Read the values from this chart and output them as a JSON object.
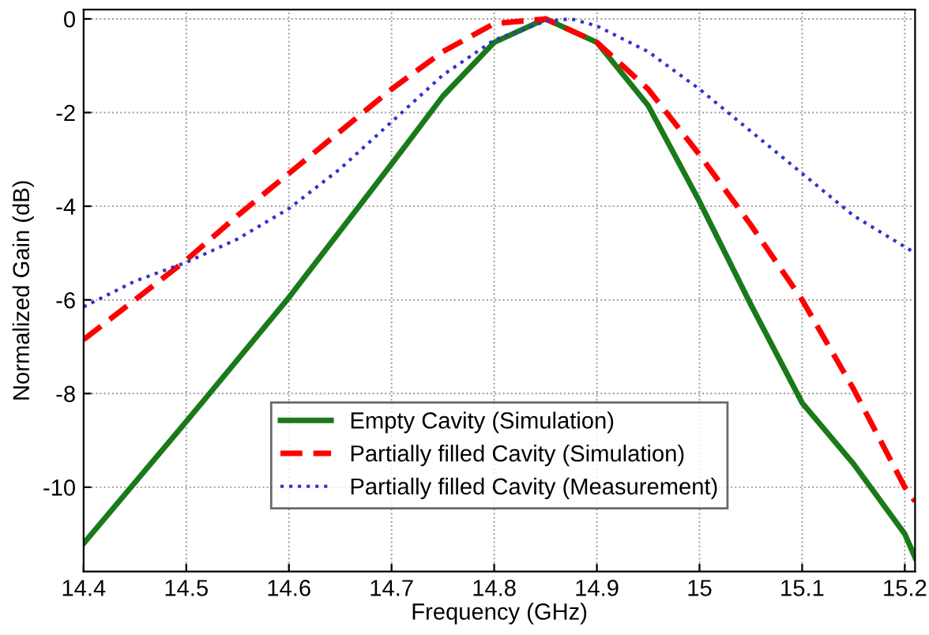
{
  "chart_data": {
    "type": "line",
    "xlabel": "Frequency (GHz)",
    "ylabel": "Normalized Gain (dB)",
    "xlim": [
      14.4,
      15.21
    ],
    "ylim": [
      -11.8,
      0.2
    ],
    "xticks": [
      14.4,
      14.5,
      14.6,
      14.7,
      14.8,
      14.9,
      15,
      15.1,
      15.2
    ],
    "yticks": [
      -10,
      -8,
      -6,
      -4,
      -2,
      0
    ],
    "grid": true,
    "legend": "bottom",
    "marker": "none",
    "series": [
      {
        "name": "Empty Cavity (Simulation)",
        "color": "#1a7a1a",
        "line_style": "solid",
        "x": [
          14.4,
          14.5,
          14.6,
          14.7,
          14.75,
          14.8,
          14.85,
          14.9,
          14.95,
          15,
          15.05,
          15.1,
          15.15,
          15.2,
          15.21
        ],
        "values": [
          -11.2,
          -8.6,
          -5.95,
          -3.1,
          -1.65,
          -0.5,
          0,
          -0.5,
          -1.85,
          -3.9,
          -6.1,
          -8.2,
          -9.5,
          -11.0,
          -11.5
        ]
      },
      {
        "name": "Partially filled Cavity (Simulation)",
        "color": "#ff0000",
        "line_style": "dashed",
        "x": [
          14.4,
          14.45,
          14.5,
          14.55,
          14.6,
          14.65,
          14.7,
          14.75,
          14.8,
          14.85,
          14.9,
          14.95,
          15,
          15.05,
          15.1,
          15.15,
          15.2,
          15.21
        ],
        "values": [
          -6.85,
          -6.0,
          -5.15,
          -4.2,
          -3.3,
          -2.4,
          -1.5,
          -0.7,
          -0.1,
          0,
          -0.5,
          -1.5,
          -2.9,
          -4.4,
          -6.0,
          -7.9,
          -10.0,
          -10.3
        ]
      },
      {
        "name": "Partially filled Cavity (Measurement)",
        "color": "#3333cc",
        "line_style": "dotted",
        "x": [
          14.4,
          14.45,
          14.5,
          14.55,
          14.6,
          14.65,
          14.7,
          14.75,
          14.8,
          14.85,
          14.875,
          14.9,
          14.95,
          15,
          15.05,
          15.1,
          15.15,
          15.21
        ],
        "values": [
          -6.15,
          -5.6,
          -5.2,
          -4.7,
          -4.05,
          -3.2,
          -2.2,
          -1.2,
          -0.45,
          -0.05,
          0,
          -0.15,
          -0.7,
          -1.5,
          -2.4,
          -3.3,
          -4.2,
          -5.0
        ]
      }
    ]
  }
}
